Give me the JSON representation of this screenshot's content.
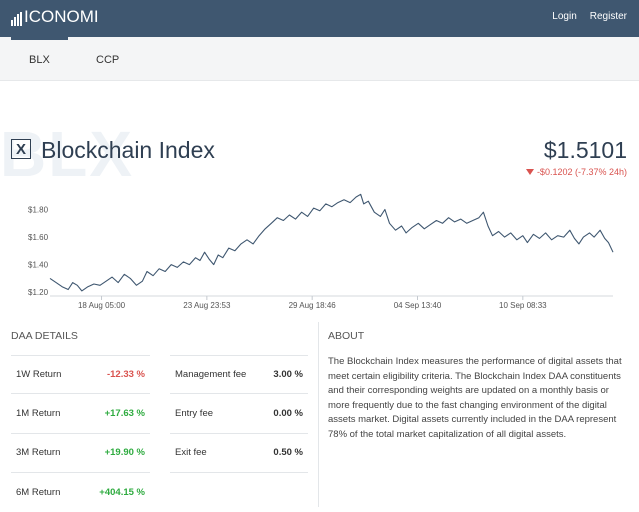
{
  "header": {
    "logo_text": "ICONOMI",
    "login_label": "Login",
    "register_label": "Register",
    "bg_color": "#3f5770"
  },
  "tabs": [
    {
      "label": "BLX",
      "active": true
    },
    {
      "label": "CCP",
      "active": false
    }
  ],
  "index": {
    "watermark": "BLX",
    "icon_glyph": "X",
    "title": "Blockchain Index",
    "price": "$1.5101",
    "change": "-$0.1202 (-7.37% 24h)",
    "change_color": "#d9534f"
  },
  "chart_data": {
    "type": "line",
    "x_tick_labels": [
      "18 Aug 05:00",
      "23 Aug 23:53",
      "29 Aug 18:46",
      "04 Sep 13:40",
      "10 Sep 08:33"
    ],
    "y_tick_labels": [
      "$1.20",
      "$1.40",
      "$1.60",
      "$1.80"
    ],
    "y_ticks": [
      1.2,
      1.4,
      1.6,
      1.8
    ],
    "ylim": [
      1.18,
      1.97
    ],
    "x_range_hours": [
      0,
      743
    ],
    "x_tick_hours": [
      68,
      207,
      346,
      485,
      624
    ],
    "series": [
      {
        "color": "#3f5770",
        "points": [
          [
            0,
            1.3
          ],
          [
            8,
            1.27
          ],
          [
            16,
            1.24
          ],
          [
            24,
            1.22
          ],
          [
            30,
            1.27
          ],
          [
            36,
            1.25
          ],
          [
            42,
            1.21
          ],
          [
            50,
            1.24
          ],
          [
            58,
            1.26
          ],
          [
            66,
            1.25
          ],
          [
            74,
            1.28
          ],
          [
            82,
            1.31
          ],
          [
            90,
            1.27
          ],
          [
            98,
            1.33
          ],
          [
            106,
            1.3
          ],
          [
            114,
            1.25
          ],
          [
            122,
            1.28
          ],
          [
            128,
            1.35
          ],
          [
            136,
            1.32
          ],
          [
            144,
            1.37
          ],
          [
            152,
            1.35
          ],
          [
            160,
            1.4
          ],
          [
            168,
            1.38
          ],
          [
            176,
            1.42
          ],
          [
            184,
            1.4
          ],
          [
            192,
            1.45
          ],
          [
            198,
            1.43
          ],
          [
            204,
            1.49
          ],
          [
            210,
            1.44
          ],
          [
            216,
            1.4
          ],
          [
            222,
            1.47
          ],
          [
            228,
            1.45
          ],
          [
            236,
            1.52
          ],
          [
            244,
            1.5
          ],
          [
            252,
            1.55
          ],
          [
            260,
            1.58
          ],
          [
            268,
            1.55
          ],
          [
            276,
            1.61
          ],
          [
            284,
            1.66
          ],
          [
            292,
            1.7
          ],
          [
            300,
            1.74
          ],
          [
            308,
            1.72
          ],
          [
            316,
            1.76
          ],
          [
            324,
            1.73
          ],
          [
            332,
            1.78
          ],
          [
            340,
            1.75
          ],
          [
            348,
            1.81
          ],
          [
            356,
            1.79
          ],
          [
            364,
            1.84
          ],
          [
            372,
            1.82
          ],
          [
            380,
            1.85
          ],
          [
            388,
            1.87
          ],
          [
            396,
            1.85
          ],
          [
            404,
            1.89
          ],
          [
            410,
            1.91
          ],
          [
            414,
            1.84
          ],
          [
            420,
            1.86
          ],
          [
            428,
            1.78
          ],
          [
            436,
            1.75
          ],
          [
            442,
            1.8
          ],
          [
            448,
            1.7
          ],
          [
            456,
            1.65
          ],
          [
            464,
            1.68
          ],
          [
            470,
            1.63
          ],
          [
            478,
            1.67
          ],
          [
            486,
            1.7
          ],
          [
            494,
            1.66
          ],
          [
            502,
            1.69
          ],
          [
            510,
            1.72
          ],
          [
            518,
            1.7
          ],
          [
            526,
            1.74
          ],
          [
            534,
            1.71
          ],
          [
            542,
            1.73
          ],
          [
            550,
            1.7
          ],
          [
            558,
            1.72
          ],
          [
            566,
            1.74
          ],
          [
            572,
            1.78
          ],
          [
            578,
            1.68
          ],
          [
            584,
            1.61
          ],
          [
            592,
            1.64
          ],
          [
            600,
            1.6
          ],
          [
            608,
            1.63
          ],
          [
            616,
            1.58
          ],
          [
            624,
            1.61
          ],
          [
            630,
            1.56
          ],
          [
            638,
            1.62
          ],
          [
            646,
            1.59
          ],
          [
            654,
            1.63
          ],
          [
            662,
            1.58
          ],
          [
            670,
            1.61
          ],
          [
            678,
            1.6
          ],
          [
            686,
            1.65
          ],
          [
            692,
            1.59
          ],
          [
            698,
            1.55
          ],
          [
            704,
            1.6
          ],
          [
            712,
            1.63
          ],
          [
            718,
            1.6
          ],
          [
            726,
            1.65
          ],
          [
            732,
            1.59
          ],
          [
            737,
            1.56
          ],
          [
            743,
            1.49
          ]
        ]
      }
    ]
  },
  "daa": {
    "title": "DAA DETAILS",
    "returns": [
      {
        "label": "1W Return",
        "value": "-12.33 %",
        "kind": "neg"
      },
      {
        "label": "1M Return",
        "value": "+17.63 %",
        "kind": "pos"
      },
      {
        "label": "3M Return",
        "value": "+19.90 %",
        "kind": "pos"
      },
      {
        "label": "6M Return",
        "value": "+404.15 %",
        "kind": "pos"
      }
    ],
    "fees": [
      {
        "label": "Management fee",
        "value": "3.00 %"
      },
      {
        "label": "Entry fee",
        "value": "0.00 %"
      },
      {
        "label": "Exit fee",
        "value": "0.50 %"
      }
    ],
    "positive_color": "#2eab3f",
    "negative_color": "#d9534f"
  },
  "about": {
    "title": "ABOUT",
    "text": "The Blockchain Index measures the performance of digital assets that meet certain eligibility criteria. The Blockchain Index DAA constituents and their corresponding weights are updated on a monthly basis or more frequently due to the fast changing environment of the digital assets market. Digital assets currently included in the DAA represent 78% of the total market capitalization of all digital assets."
  }
}
